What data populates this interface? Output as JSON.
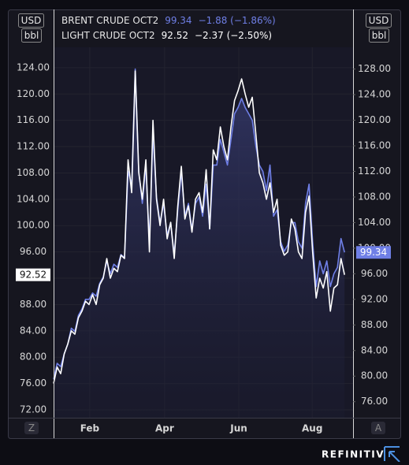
{
  "chart_data": {
    "type": "line",
    "series": [
      {
        "name": "BRENT CRUDE OCT2",
        "color": "#6f7fe6",
        "axis": "y2",
        "change": "−1.88 (−1.86%)",
        "values": [
          79.5,
          82,
          81.5,
          83.5,
          85,
          87.5,
          87,
          89.5,
          90.5,
          92,
          92,
          93,
          92.5,
          94.5,
          95.5,
          98,
          96,
          97.5,
          97,
          99,
          98.5,
          112,
          110,
          128,
          112,
          107,
          113,
          101,
          118,
          108,
          104,
          107,
          102,
          104,
          99,
          106,
          112,
          105,
          107,
          103,
          107,
          108,
          105,
          110,
          103,
          113,
          113,
          117,
          115,
          113,
          117,
          121,
          122,
          123.4,
          122,
          121,
          120,
          116,
          113,
          112,
          109,
          113,
          105,
          106,
          101,
          99.5,
          100.5,
          104,
          104,
          101,
          100,
          107,
          110,
          101,
          94,
          98,
          96,
          98,
          94,
          96,
          97,
          101.5,
          99.34
        ]
      },
      {
        "name": "LIGHT CRUDE OCT2",
        "color": "#ffffff",
        "change": "−2.37 (−2.50%)",
        "values": [
          76,
          78.5,
          77.5,
          80.5,
          82,
          84,
          83.5,
          86,
          87,
          88.5,
          88,
          89.5,
          88,
          91,
          92,
          95,
          92,
          93.5,
          93,
          95.5,
          95,
          110,
          105,
          123.5,
          108,
          104,
          110,
          96,
          116,
          104,
          100,
          104,
          98,
          100.5,
          95,
          103,
          109,
          101,
          103,
          99,
          104,
          105,
          102,
          108.5,
          99.5,
          111.5,
          110,
          115,
          112,
          110,
          115,
          119,
          120.5,
          122.3,
          120,
          118,
          119.5,
          114,
          108,
          106.5,
          104,
          106.5,
          102,
          104,
          97,
          95.5,
          96,
          101,
          99.5,
          96,
          95,
          102,
          104.5,
          96,
          89,
          92,
          90.5,
          93,
          87,
          90.5,
          91,
          95,
          92.52
        ]
      }
    ],
    "xlim": [
      0,
      84.4
    ],
    "xticks": [
      {
        "value": 10.2,
        "label": "Feb"
      },
      {
        "value": 31.3,
        "label": "Apr"
      },
      {
        "value": 52.2,
        "label": "Jun"
      },
      {
        "value": 72.9,
        "label": "Aug"
      }
    ],
    "ylim": [
      70.8,
      127.1
    ],
    "yticks": [
      {
        "value": 72,
        "label": "72.00"
      },
      {
        "value": 76,
        "label": "76.00"
      },
      {
        "value": 80,
        "label": "80.00"
      },
      {
        "value": 84,
        "label": "84.00"
      },
      {
        "value": 88,
        "label": "88.00"
      },
      {
        "value": 92,
        "label": "92.00"
      },
      {
        "value": 96,
        "label": "96.00"
      },
      {
        "value": 100,
        "label": "100.00"
      },
      {
        "value": 104,
        "label": "104.00"
      },
      {
        "value": 108,
        "label": "108.00"
      },
      {
        "value": 112,
        "label": "112.00"
      },
      {
        "value": 116,
        "label": "116.00"
      },
      {
        "value": 120,
        "label": "120.00"
      },
      {
        "value": 124,
        "label": "124.00"
      }
    ],
    "y2lim": [
      73.5,
      131.4
    ],
    "y2ticks": [
      {
        "value": 76,
        "label": "76.00"
      },
      {
        "value": 80,
        "label": "80.00"
      },
      {
        "value": 84,
        "label": "84.00"
      },
      {
        "value": 88,
        "label": "88.00"
      },
      {
        "value": 92,
        "label": "92.00"
      },
      {
        "value": 96,
        "label": "96.00"
      },
      {
        "value": 100,
        "label": "100.00"
      },
      {
        "value": 104,
        "label": "104.00"
      },
      {
        "value": 108,
        "label": "108.00"
      },
      {
        "value": 112,
        "label": "112.00"
      },
      {
        "value": 116,
        "label": "116.00"
      },
      {
        "value": 120,
        "label": "120.00"
      },
      {
        "value": 124,
        "label": "124.00"
      },
      {
        "value": 128,
        "label": "128.00"
      }
    ],
    "left_unit": [
      "USD",
      "bbl"
    ],
    "right_unit": [
      "USD",
      "bbl"
    ],
    "grid": true
  },
  "controls": {
    "left": "Z",
    "right": "A"
  },
  "brand": "REFINITIV"
}
